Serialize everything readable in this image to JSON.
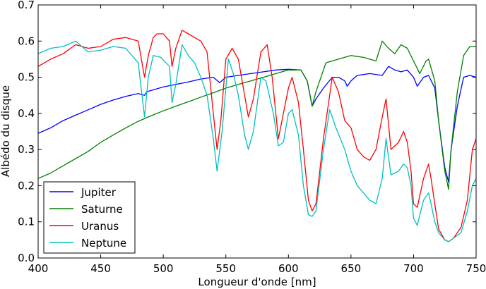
{
  "chart_data": {
    "type": "line",
    "title": "",
    "xlabel": "Longueur d'onde [nm]",
    "ylabel": "Albédo du disque",
    "xlim": [
      400,
      750
    ],
    "ylim": [
      0.0,
      0.7
    ],
    "x_ticks": [
      400,
      450,
      500,
      550,
      600,
      650,
      700,
      750
    ],
    "y_ticks": [
      0.0,
      0.1,
      0.2,
      0.3,
      0.4,
      0.5,
      0.6,
      0.7
    ],
    "x_tick_labels": [
      "400",
      "450",
      "500",
      "550",
      "600",
      "650",
      "700",
      "750"
    ],
    "y_tick_labels": [
      "0.0",
      "0.1",
      "0.2",
      "0.3",
      "0.4",
      "0.5",
      "0.6",
      "0.7"
    ],
    "grid": false,
    "legend_position": "bottom-left",
    "series": [
      {
        "name": "Jupiter",
        "color": "#0000ff",
        "points": [
          [
            400,
            0.345
          ],
          [
            410,
            0.36
          ],
          [
            420,
            0.38
          ],
          [
            430,
            0.395
          ],
          [
            440,
            0.41
          ],
          [
            450,
            0.425
          ],
          [
            460,
            0.437
          ],
          [
            470,
            0.447
          ],
          [
            480,
            0.455
          ],
          [
            485,
            0.45
          ],
          [
            487,
            0.46
          ],
          [
            490,
            0.463
          ],
          [
            500,
            0.473
          ],
          [
            510,
            0.48
          ],
          [
            520,
            0.487
          ],
          [
            530,
            0.495
          ],
          [
            540,
            0.5
          ],
          [
            545,
            0.485
          ],
          [
            550,
            0.5
          ],
          [
            560,
            0.505
          ],
          [
            570,
            0.51
          ],
          [
            580,
            0.515
          ],
          [
            590,
            0.52
          ],
          [
            600,
            0.522
          ],
          [
            610,
            0.52
          ],
          [
            615,
            0.49
          ],
          [
            619,
            0.42
          ],
          [
            622,
            0.44
          ],
          [
            628,
            0.47
          ],
          [
            635,
            0.5
          ],
          [
            640,
            0.5
          ],
          [
            645,
            0.49
          ],
          [
            647,
            0.475
          ],
          [
            650,
            0.49
          ],
          [
            655,
            0.505
          ],
          [
            665,
            0.51
          ],
          [
            675,
            0.505
          ],
          [
            680,
            0.53
          ],
          [
            685,
            0.52
          ],
          [
            690,
            0.515
          ],
          [
            695,
            0.52
          ],
          [
            700,
            0.5
          ],
          [
            703,
            0.475
          ],
          [
            708,
            0.5
          ],
          [
            712,
            0.505
          ],
          [
            717,
            0.47
          ],
          [
            720,
            0.38
          ],
          [
            725,
            0.25
          ],
          [
            728,
            0.21
          ],
          [
            730,
            0.3
          ],
          [
            735,
            0.42
          ],
          [
            740,
            0.5
          ],
          [
            745,
            0.505
          ],
          [
            750,
            0.5
          ]
        ]
      },
      {
        "name": "Saturne",
        "color": "#008000",
        "points": [
          [
            400,
            0.22
          ],
          [
            410,
            0.235
          ],
          [
            420,
            0.255
          ],
          [
            430,
            0.275
          ],
          [
            440,
            0.295
          ],
          [
            450,
            0.32
          ],
          [
            460,
            0.34
          ],
          [
            470,
            0.36
          ],
          [
            480,
            0.378
          ],
          [
            490,
            0.393
          ],
          [
            500,
            0.407
          ],
          [
            510,
            0.42
          ],
          [
            520,
            0.432
          ],
          [
            530,
            0.445
          ],
          [
            540,
            0.457
          ],
          [
            550,
            0.47
          ],
          [
            560,
            0.48
          ],
          [
            570,
            0.49
          ],
          [
            580,
            0.5
          ],
          [
            590,
            0.51
          ],
          [
            600,
            0.52
          ],
          [
            610,
            0.52
          ],
          [
            615,
            0.49
          ],
          [
            619,
            0.42
          ],
          [
            622,
            0.46
          ],
          [
            630,
            0.54
          ],
          [
            640,
            0.55
          ],
          [
            650,
            0.56
          ],
          [
            660,
            0.555
          ],
          [
            670,
            0.545
          ],
          [
            675,
            0.6
          ],
          [
            680,
            0.58
          ],
          [
            685,
            0.565
          ],
          [
            690,
            0.59
          ],
          [
            695,
            0.58
          ],
          [
            700,
            0.545
          ],
          [
            705,
            0.51
          ],
          [
            710,
            0.545
          ],
          [
            712,
            0.55
          ],
          [
            717,
            0.49
          ],
          [
            720,
            0.38
          ],
          [
            725,
            0.24
          ],
          [
            728,
            0.19
          ],
          [
            730,
            0.3
          ],
          [
            735,
            0.46
          ],
          [
            740,
            0.56
          ],
          [
            745,
            0.585
          ],
          [
            750,
            0.585
          ]
        ]
      },
      {
        "name": "Uranus",
        "color": "#ff0000",
        "points": [
          [
            400,
            0.53
          ],
          [
            410,
            0.55
          ],
          [
            420,
            0.565
          ],
          [
            430,
            0.59
          ],
          [
            440,
            0.58
          ],
          [
            450,
            0.585
          ],
          [
            460,
            0.605
          ],
          [
            470,
            0.61
          ],
          [
            480,
            0.6
          ],
          [
            485,
            0.5
          ],
          [
            488,
            0.56
          ],
          [
            492,
            0.61
          ],
          [
            495,
            0.62
          ],
          [
            500,
            0.62
          ],
          [
            505,
            0.6
          ],
          [
            507,
            0.53
          ],
          [
            510,
            0.58
          ],
          [
            515,
            0.63
          ],
          [
            520,
            0.62
          ],
          [
            525,
            0.61
          ],
          [
            530,
            0.6
          ],
          [
            535,
            0.57
          ],
          [
            540,
            0.4
          ],
          [
            543,
            0.3
          ],
          [
            546,
            0.38
          ],
          [
            550,
            0.55
          ],
          [
            555,
            0.58
          ],
          [
            560,
            0.55
          ],
          [
            565,
            0.45
          ],
          [
            568,
            0.39
          ],
          [
            572,
            0.44
          ],
          [
            578,
            0.57
          ],
          [
            583,
            0.59
          ],
          [
            587,
            0.5
          ],
          [
            592,
            0.33
          ],
          [
            596,
            0.4
          ],
          [
            600,
            0.47
          ],
          [
            603,
            0.5
          ],
          [
            608,
            0.43
          ],
          [
            612,
            0.3
          ],
          [
            616,
            0.16
          ],
          [
            619,
            0.13
          ],
          [
            622,
            0.15
          ],
          [
            628,
            0.33
          ],
          [
            635,
            0.5
          ],
          [
            640,
            0.46
          ],
          [
            645,
            0.38
          ],
          [
            650,
            0.36
          ],
          [
            655,
            0.3
          ],
          [
            660,
            0.28
          ],
          [
            665,
            0.27
          ],
          [
            670,
            0.3
          ],
          [
            675,
            0.39
          ],
          [
            678,
            0.44
          ],
          [
            682,
            0.3
          ],
          [
            688,
            0.32
          ],
          [
            692,
            0.35
          ],
          [
            695,
            0.32
          ],
          [
            698,
            0.24
          ],
          [
            700,
            0.15
          ],
          [
            703,
            0.14
          ],
          [
            708,
            0.22
          ],
          [
            712,
            0.26
          ],
          [
            714,
            0.22
          ],
          [
            717,
            0.15
          ],
          [
            720,
            0.08
          ],
          [
            725,
            0.05
          ],
          [
            728,
            0.045
          ],
          [
            732,
            0.055
          ],
          [
            738,
            0.085
          ],
          [
            743,
            0.16
          ],
          [
            747,
            0.3
          ],
          [
            750,
            0.33
          ]
        ]
      },
      {
        "name": "Neptune",
        "color": "#00bfbf",
        "points": [
          [
            400,
            0.565
          ],
          [
            410,
            0.58
          ],
          [
            420,
            0.585
          ],
          [
            430,
            0.6
          ],
          [
            440,
            0.57
          ],
          [
            450,
            0.575
          ],
          [
            460,
            0.585
          ],
          [
            470,
            0.58
          ],
          [
            480,
            0.54
          ],
          [
            485,
            0.39
          ],
          [
            488,
            0.5
          ],
          [
            492,
            0.56
          ],
          [
            498,
            0.555
          ],
          [
            505,
            0.53
          ],
          [
            507,
            0.43
          ],
          [
            510,
            0.48
          ],
          [
            515,
            0.59
          ],
          [
            520,
            0.56
          ],
          [
            525,
            0.54
          ],
          [
            530,
            0.5
          ],
          [
            535,
            0.45
          ],
          [
            540,
            0.33
          ],
          [
            543,
            0.24
          ],
          [
            547,
            0.35
          ],
          [
            552,
            0.55
          ],
          [
            556,
            0.51
          ],
          [
            560,
            0.45
          ],
          [
            565,
            0.34
          ],
          [
            568,
            0.3
          ],
          [
            572,
            0.35
          ],
          [
            578,
            0.5
          ],
          [
            582,
            0.49
          ],
          [
            588,
            0.4
          ],
          [
            592,
            0.31
          ],
          [
            596,
            0.32
          ],
          [
            600,
            0.4
          ],
          [
            603,
            0.41
          ],
          [
            608,
            0.34
          ],
          [
            612,
            0.2
          ],
          [
            616,
            0.12
          ],
          [
            619,
            0.115
          ],
          [
            622,
            0.13
          ],
          [
            628,
            0.3
          ],
          [
            633,
            0.41
          ],
          [
            638,
            0.36
          ],
          [
            645,
            0.3
          ],
          [
            650,
            0.24
          ],
          [
            655,
            0.2
          ],
          [
            660,
            0.18
          ],
          [
            665,
            0.16
          ],
          [
            670,
            0.15
          ],
          [
            675,
            0.22
          ],
          [
            678,
            0.33
          ],
          [
            682,
            0.23
          ],
          [
            688,
            0.24
          ],
          [
            692,
            0.26
          ],
          [
            695,
            0.25
          ],
          [
            698,
            0.2
          ],
          [
            700,
            0.11
          ],
          [
            703,
            0.09
          ],
          [
            708,
            0.16
          ],
          [
            712,
            0.18
          ],
          [
            714,
            0.15
          ],
          [
            717,
            0.1
          ],
          [
            720,
            0.07
          ],
          [
            725,
            0.05
          ],
          [
            728,
            0.045
          ],
          [
            732,
            0.055
          ],
          [
            738,
            0.07
          ],
          [
            743,
            0.13
          ],
          [
            747,
            0.2
          ],
          [
            750,
            0.22
          ]
        ]
      }
    ]
  }
}
